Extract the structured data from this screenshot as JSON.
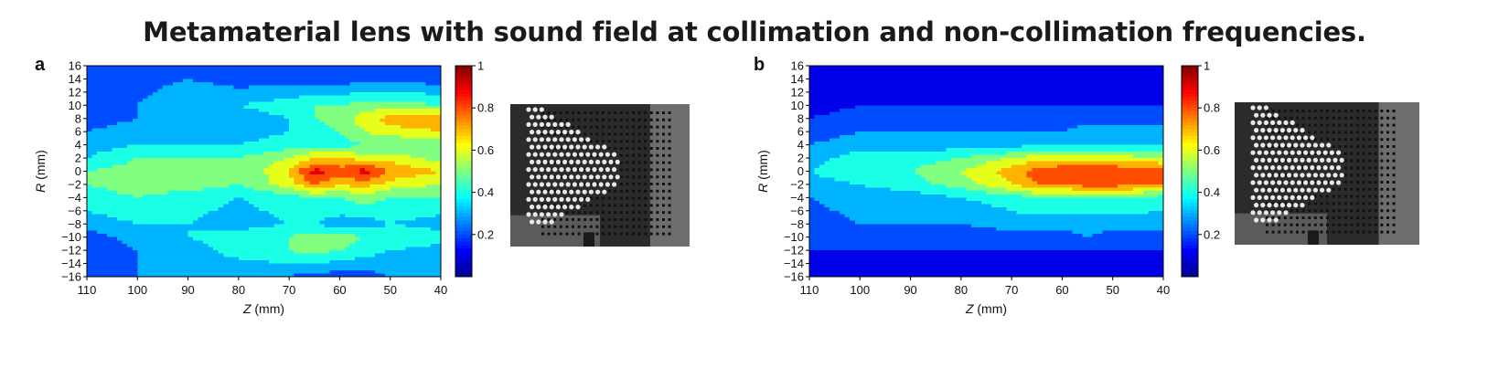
{
  "figure_title": "Metamaterial lens with sound field at collimation and non-collimation frequencies.",
  "colors": {
    "colormap": [
      "#00008f",
      "#0000ff",
      "#0080ff",
      "#00ffff",
      "#80ff80",
      "#ffff00",
      "#ff8000",
      "#ff0000",
      "#800000"
    ]
  },
  "panels": [
    {
      "label": "a",
      "xlabel_var": "Z",
      "xlabel_unit": " (mm)",
      "ylabel_var": "R",
      "ylabel_unit": " (mm)",
      "photo_alt": "metamaterial-lens-photo"
    },
    {
      "label": "b",
      "xlabel_var": "Z",
      "xlabel_unit": " (mm)",
      "ylabel_var": "R",
      "ylabel_unit": " (mm)",
      "photo_alt": "metamaterial-lens-photo"
    }
  ],
  "chart_data": [
    {
      "type": "heatmap",
      "panel": "a",
      "xlabel": "Z (mm)",
      "ylabel": "R (mm)",
      "xlim": [
        110,
        40
      ],
      "ylim": [
        -16,
        16
      ],
      "x": [
        110,
        100,
        90,
        80,
        70,
        65,
        60,
        55,
        50,
        40
      ],
      "y": [
        -16,
        -12,
        -10,
        -8,
        -4,
        -2,
        0,
        2,
        4,
        6,
        8,
        10,
        14,
        16
      ],
      "x_ticks": [
        110,
        100,
        90,
        80,
        70,
        60,
        50,
        40
      ],
      "y_ticks": [
        16,
        14,
        12,
        10,
        8,
        6,
        4,
        2,
        0,
        -2,
        -4,
        -6,
        -8,
        -10,
        -12,
        -14,
        -16
      ],
      "z": [
        [
          0.2,
          0.25,
          0.25,
          0.25,
          0.25,
          0.2,
          0.2,
          0.2,
          0.25,
          0.25
        ],
        [
          0.15,
          0.25,
          0.3,
          0.4,
          0.45,
          0.5,
          0.45,
          0.4,
          0.35,
          0.3
        ],
        [
          0.2,
          0.3,
          0.35,
          0.4,
          0.45,
          0.5,
          0.5,
          0.45,
          0.45,
          0.4
        ],
        [
          0.3,
          0.35,
          0.35,
          0.3,
          0.35,
          0.35,
          0.3,
          0.3,
          0.35,
          0.3
        ],
        [
          0.4,
          0.45,
          0.4,
          0.35,
          0.4,
          0.45,
          0.45,
          0.5,
          0.45,
          0.45
        ],
        [
          0.45,
          0.5,
          0.5,
          0.45,
          0.6,
          0.75,
          0.65,
          0.7,
          0.6,
          0.55
        ],
        [
          0.45,
          0.5,
          0.55,
          0.45,
          0.65,
          0.9,
          0.8,
          0.9,
          0.75,
          0.65
        ],
        [
          0.35,
          0.45,
          0.45,
          0.45,
          0.55,
          0.65,
          0.65,
          0.6,
          0.6,
          0.5
        ],
        [
          0.3,
          0.35,
          0.35,
          0.35,
          0.4,
          0.4,
          0.4,
          0.45,
          0.45,
          0.45
        ],
        [
          0.25,
          0.3,
          0.3,
          0.3,
          0.35,
          0.4,
          0.45,
          0.55,
          0.6,
          0.65
        ],
        [
          0.2,
          0.25,
          0.3,
          0.3,
          0.35,
          0.45,
          0.5,
          0.6,
          0.7,
          0.75
        ],
        [
          0.25,
          0.25,
          0.35,
          0.35,
          0.4,
          0.45,
          0.45,
          0.5,
          0.5,
          0.45
        ],
        [
          0.15,
          0.2,
          0.25,
          0.2,
          0.2,
          0.2,
          0.2,
          0.2,
          0.2,
          0.2
        ],
        [
          0.15,
          0.15,
          0.15,
          0.15,
          0.15,
          0.15,
          0.15,
          0.15,
          0.15,
          0.15
        ]
      ],
      "colorbar": {
        "range": [
          0,
          1
        ],
        "ticks": [
          1,
          0.8,
          0.6,
          0.4,
          0.2
        ]
      },
      "grid": false
    },
    {
      "type": "heatmap",
      "panel": "b",
      "xlabel": "Z (mm)",
      "ylabel": "R (mm)",
      "xlim": [
        110,
        40
      ],
      "ylim": [
        -16,
        16
      ],
      "x": [
        110,
        100,
        90,
        80,
        70,
        65,
        60,
        55,
        50,
        40
      ],
      "y": [
        -16,
        -12,
        -10,
        -8,
        -4,
        -2,
        0,
        2,
        4,
        6,
        8,
        10,
        14,
        16
      ],
      "x_ticks": [
        110,
        100,
        90,
        80,
        70,
        60,
        50,
        40
      ],
      "y_ticks": [
        16,
        14,
        12,
        10,
        8,
        6,
        4,
        2,
        0,
        -2,
        -4,
        -6,
        -8,
        -10,
        -12,
        -14,
        -16
      ],
      "z": [
        [
          0.1,
          0.1,
          0.1,
          0.1,
          0.1,
          0.1,
          0.1,
          0.1,
          0.1,
          0.1
        ],
        [
          0.15,
          0.15,
          0.15,
          0.15,
          0.15,
          0.15,
          0.15,
          0.15,
          0.15,
          0.15
        ],
        [
          0.15,
          0.15,
          0.15,
          0.15,
          0.2,
          0.2,
          0.2,
          0.25,
          0.2,
          0.2
        ],
        [
          0.2,
          0.25,
          0.25,
          0.25,
          0.3,
          0.3,
          0.3,
          0.3,
          0.3,
          0.3
        ],
        [
          0.25,
          0.3,
          0.3,
          0.35,
          0.4,
          0.45,
          0.45,
          0.45,
          0.45,
          0.4
        ],
        [
          0.3,
          0.35,
          0.4,
          0.5,
          0.65,
          0.75,
          0.75,
          0.8,
          0.8,
          0.75
        ],
        [
          0.35,
          0.45,
          0.45,
          0.55,
          0.7,
          0.8,
          0.85,
          0.85,
          0.85,
          0.8
        ],
        [
          0.3,
          0.4,
          0.4,
          0.45,
          0.55,
          0.6,
          0.6,
          0.6,
          0.6,
          0.55
        ],
        [
          0.25,
          0.3,
          0.3,
          0.3,
          0.3,
          0.35,
          0.35,
          0.35,
          0.35,
          0.35
        ],
        [
          0.2,
          0.25,
          0.25,
          0.25,
          0.25,
          0.25,
          0.25,
          0.3,
          0.3,
          0.3
        ],
        [
          0.15,
          0.2,
          0.2,
          0.25,
          0.2,
          0.2,
          0.2,
          0.2,
          0.2,
          0.2
        ],
        [
          0.1,
          0.15,
          0.15,
          0.15,
          0.15,
          0.15,
          0.15,
          0.15,
          0.15,
          0.15
        ],
        [
          0.1,
          0.1,
          0.1,
          0.1,
          0.1,
          0.1,
          0.1,
          0.1,
          0.1,
          0.1
        ],
        [
          0.1,
          0.1,
          0.1,
          0.1,
          0.1,
          0.1,
          0.1,
          0.1,
          0.1,
          0.1
        ]
      ],
      "colorbar": {
        "range": [
          0,
          1
        ],
        "ticks": [
          1,
          0.8,
          0.6,
          0.4,
          0.2
        ]
      },
      "grid": false
    }
  ]
}
